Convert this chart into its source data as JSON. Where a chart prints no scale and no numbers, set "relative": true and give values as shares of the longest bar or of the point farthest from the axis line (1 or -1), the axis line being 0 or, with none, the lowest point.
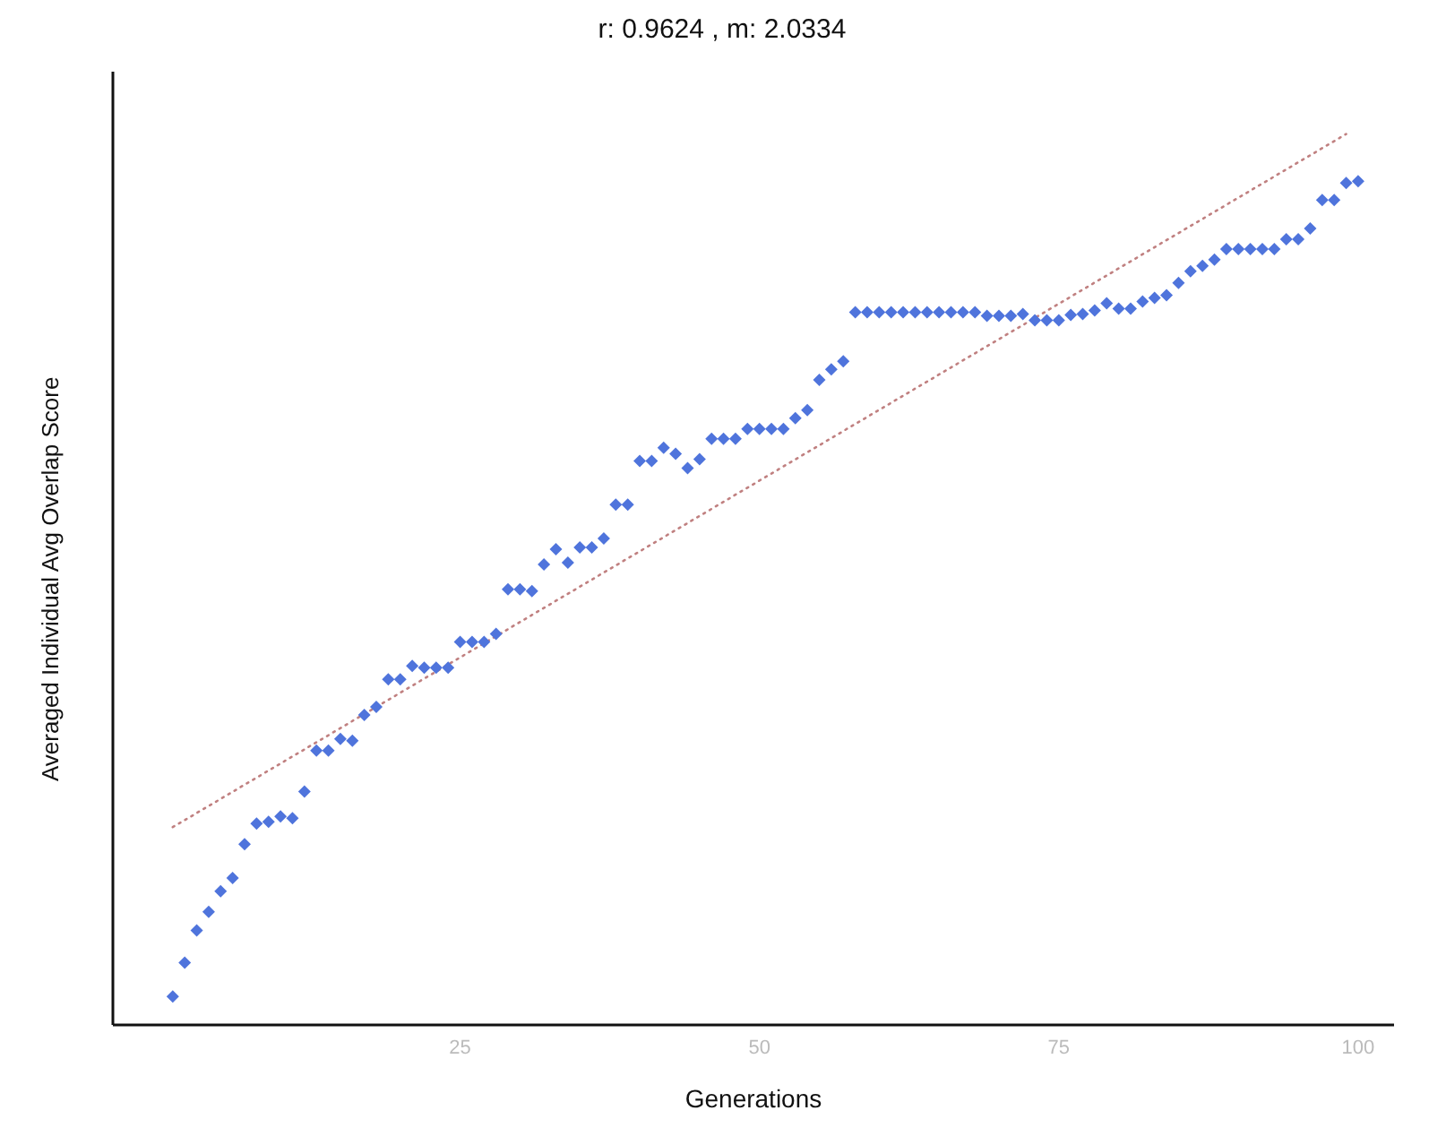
{
  "chart_data": {
    "type": "scatter",
    "title": "r: 0.9624 , m: 2.0334",
    "xlabel": "Generations",
    "ylabel": "Averaged Individual Avg  Overlap Score",
    "relative": true,
    "xlim": [
      -4,
      103
    ],
    "xticks": [
      25,
      50,
      75,
      100
    ],
    "series": [
      {
        "color": "#4f74dc",
        "marker": "diamond",
        "x": [
          1,
          2,
          3,
          4,
          5,
          6,
          7,
          8,
          9,
          10,
          11,
          12,
          13,
          14,
          15,
          16,
          17,
          18,
          19,
          20,
          21,
          22,
          23,
          24,
          25,
          26,
          27,
          28,
          29,
          30,
          31,
          32,
          33,
          34,
          35,
          36,
          37,
          38,
          39,
          40,
          41,
          42,
          43,
          44,
          45,
          46,
          47,
          48,
          49,
          50,
          51,
          52,
          53,
          54,
          55,
          56,
          57,
          58,
          59,
          60,
          61,
          62,
          63,
          64,
          65,
          66,
          67,
          68,
          69,
          70,
          71,
          72,
          73,
          74,
          75,
          76,
          77,
          78,
          79,
          80,
          81,
          82,
          83,
          84,
          85,
          86,
          87,
          88,
          89,
          90,
          91,
          92,
          93,
          94,
          95,
          96,
          97,
          98,
          99,
          100
        ],
        "values": [
          0.032,
          0.07,
          0.106,
          0.127,
          0.15,
          0.165,
          0.203,
          0.226,
          0.228,
          0.234,
          0.232,
          0.262,
          0.308,
          0.308,
          0.321,
          0.319,
          0.348,
          0.357,
          0.388,
          0.388,
          0.403,
          0.401,
          0.401,
          0.401,
          0.43,
          0.43,
          0.43,
          0.439,
          0.489,
          0.489,
          0.487,
          0.517,
          0.534,
          0.519,
          0.536,
          0.536,
          0.546,
          0.584,
          0.584,
          0.633,
          0.633,
          0.648,
          0.641,
          0.625,
          0.635,
          0.658,
          0.658,
          0.658,
          0.669,
          0.669,
          0.669,
          0.669,
          0.681,
          0.69,
          0.724,
          0.736,
          0.745,
          0.8,
          0.8,
          0.8,
          0.8,
          0.8,
          0.8,
          0.8,
          0.8,
          0.8,
          0.8,
          0.8,
          0.796,
          0.796,
          0.796,
          0.798,
          0.791,
          0.791,
          0.791,
          0.797,
          0.798,
          0.802,
          0.81,
          0.804,
          0.804,
          0.812,
          0.816,
          0.819,
          0.833,
          0.846,
          0.852,
          0.859,
          0.871,
          0.871,
          0.871,
          0.871,
          0.871,
          0.882,
          0.882,
          0.894,
          0.926,
          0.926,
          0.945,
          0.947
        ]
      },
      {
        "type": "line",
        "color": "#c08080",
        "marker": "none",
        "line_style": "dotted",
        "x": [
          1,
          99
        ],
        "values": [
          0.222,
          1.0
        ]
      }
    ]
  }
}
